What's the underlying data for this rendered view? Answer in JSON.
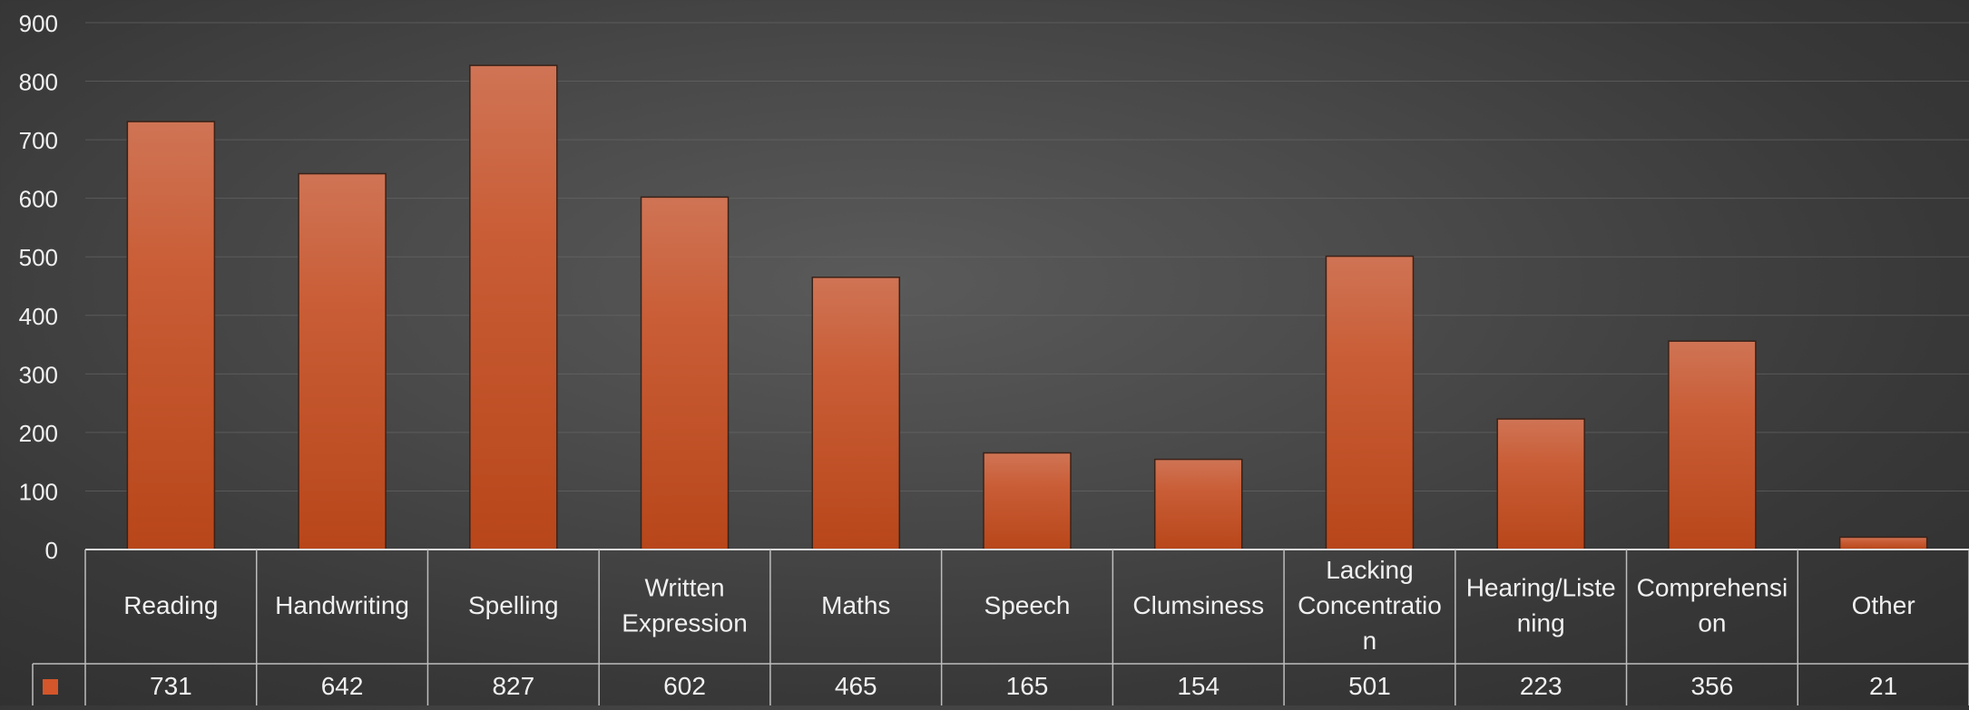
{
  "chart_data": {
    "type": "bar",
    "title": "",
    "xlabel": "",
    "ylabel": "",
    "ylim": [
      0,
      900
    ],
    "yticks": [
      0,
      100,
      200,
      300,
      400,
      500,
      600,
      700,
      800,
      900
    ],
    "grid": true,
    "data_table": true,
    "categories": [
      [
        "Reading"
      ],
      [
        "Handwriting"
      ],
      [
        "Spelling"
      ],
      [
        "Written",
        "Expression"
      ],
      [
        "Maths"
      ],
      [
        "Speech"
      ],
      [
        "Clumsiness"
      ],
      [
        "Lacking",
        "Concentratio",
        "n"
      ],
      [
        "Hearing/Liste",
        "ning"
      ],
      [
        "Comprehensi",
        "on"
      ],
      [
        "Other"
      ]
    ],
    "values": [
      731,
      642,
      827,
      602,
      465,
      165,
      154,
      501,
      223,
      356,
      21
    ],
    "value_labels": [
      "731",
      "642",
      "827",
      "602",
      "465",
      "165",
      "154",
      "501",
      "223",
      "356",
      "21"
    ],
    "bar_color_top": "#cf7455",
    "bar_color_bottom": "#b8461a",
    "legend_color": "#d4562a"
  }
}
